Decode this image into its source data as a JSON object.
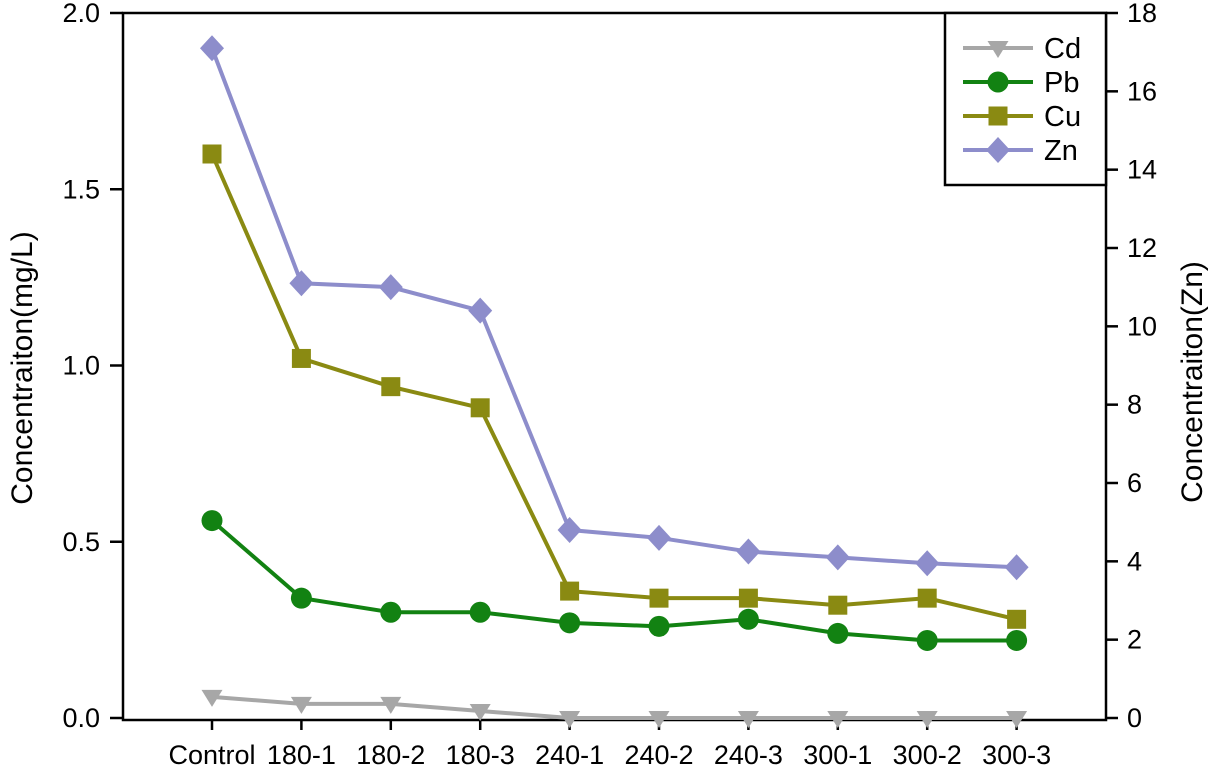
{
  "chart_data": {
    "type": "line",
    "title": "",
    "categories": [
      "Control",
      "180-1",
      "180-2",
      "180-3",
      "240-1",
      "240-2",
      "240-3",
      "300-1",
      "300-2",
      "300-3"
    ],
    "series": [
      {
        "name": "Cd",
        "axis": "left",
        "marker": "triangle-down",
        "color": "#a7a7a7",
        "values": [
          0.06,
          0.04,
          0.04,
          0.02,
          0.0,
          0.0,
          0.0,
          0.0,
          0.0,
          0.0
        ]
      },
      {
        "name": "Pb",
        "axis": "left",
        "marker": "circle",
        "color": "#128212",
        "values": [
          0.56,
          0.34,
          0.3,
          0.3,
          0.27,
          0.26,
          0.28,
          0.24,
          0.22,
          0.22
        ]
      },
      {
        "name": "Cu",
        "axis": "left",
        "marker": "square",
        "color": "#8a8a12",
        "values": [
          1.6,
          1.02,
          0.94,
          0.88,
          0.36,
          0.34,
          0.34,
          0.32,
          0.34,
          0.28
        ]
      },
      {
        "name": "Zn",
        "axis": "right",
        "marker": "diamond",
        "color": "#8d8dcb",
        "values": [
          17.1,
          11.1,
          11.0,
          10.4,
          4.8,
          4.6,
          4.25,
          4.1,
          3.95,
          3.85
        ]
      }
    ],
    "ylabel_left": "Concentraiton(mg/L)",
    "ylabel_right": "Concentraiton(Zn)",
    "ylim_left": [
      0,
      2
    ],
    "ylim_right": [
      0,
      18
    ],
    "left_tick_labels": [
      "2.0",
      "1.5",
      "1.0",
      "0.5",
      "0.0"
    ],
    "right_tick_labels": [
      "18",
      "16",
      "14",
      "12",
      "10",
      "8",
      "6",
      "4",
      "2",
      "0"
    ],
    "legend_position": "top-right",
    "grid": false,
    "frame": true
  }
}
